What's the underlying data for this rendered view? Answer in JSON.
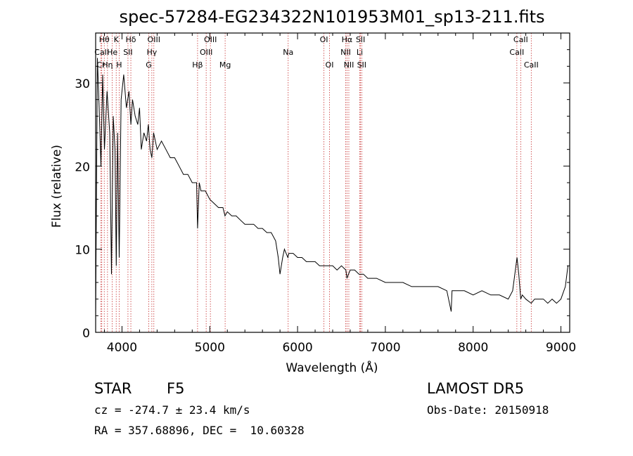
{
  "chart_data": {
    "type": "line",
    "title": "spec-57284-EG234322N101953M01_sp13-211.fits",
    "xlabel": "Wavelength (Å)",
    "ylabel": "Flux (relative)",
    "xlim": [
      3700,
      9100
    ],
    "ylim": [
      0,
      36
    ],
    "xticks": [
      4000,
      5000,
      6000,
      7000,
      8000,
      9000
    ],
    "yticks": [
      0,
      10,
      20,
      30
    ],
    "series": [
      {
        "x": [
          3700,
          3720,
          3740,
          3760,
          3780,
          3800,
          3830,
          3860,
          3880,
          3900,
          3920,
          3935,
          3950,
          3968,
          3990,
          4020,
          4050,
          4080,
          4101,
          4120,
          4150,
          4180,
          4200,
          4220,
          4250,
          4280,
          4300,
          4320,
          4340,
          4360,
          4380,
          4400,
          4450,
          4500,
          4550,
          4600,
          4650,
          4700,
          4750,
          4800,
          4850,
          4861,
          4880,
          4900,
          4950,
          5000,
          5050,
          5100,
          5150,
          5173,
          5200,
          5250,
          5300,
          5350,
          5400,
          5450,
          5500,
          5550,
          5600,
          5650,
          5700,
          5750,
          5780,
          5800,
          5830,
          5850,
          5870,
          5890,
          5900,
          5950,
          6000,
          6050,
          6100,
          6150,
          6200,
          6250,
          6300,
          6350,
          6400,
          6450,
          6500,
          6550,
          6563,
          6580,
          6600,
          6650,
          6700,
          6750,
          6800,
          6900,
          7000,
          7100,
          7200,
          7300,
          7400,
          7500,
          7600,
          7700,
          7750,
          7760,
          7800,
          7900,
          8000,
          8100,
          8200,
          8300,
          8400,
          8450,
          8500,
          8520,
          8542,
          8560,
          8600,
          8662,
          8700,
          8750,
          8800,
          8850,
          8900,
          8950,
          9000,
          9050,
          9080
        ],
        "y": [
          2,
          33,
          27,
          20,
          31,
          22,
          29,
          24,
          7,
          26,
          22,
          8,
          24,
          9,
          28,
          31,
          27,
          29,
          25,
          28,
          26,
          25,
          27,
          22,
          24,
          23,
          25,
          22,
          21,
          24,
          23,
          22,
          23,
          22,
          21,
          21,
          20,
          19,
          19,
          18,
          18,
          12.5,
          18,
          17,
          17,
          16,
          15.5,
          15,
          15,
          14,
          14.5,
          14,
          14,
          13.5,
          13,
          13,
          13,
          12.5,
          12.5,
          12,
          12,
          11,
          9,
          7,
          9,
          10,
          9.5,
          9,
          9.5,
          9.5,
          9,
          9,
          8.5,
          8.5,
          8.5,
          8,
          8,
          8,
          8,
          7.5,
          8,
          7.5,
          6.5,
          7,
          7.5,
          7.5,
          7,
          7,
          6.5,
          6.5,
          6,
          6,
          6,
          5.5,
          5.5,
          5.5,
          5.5,
          5,
          2.5,
          5,
          5,
          5,
          4.5,
          5,
          4.5,
          4.5,
          4,
          5,
          9,
          7,
          4,
          4.5,
          4,
          3.5,
          4,
          4,
          4,
          3.5,
          4,
          3.5,
          4,
          5.5,
          8
        ]
      }
    ],
    "lines": [
      {
        "name": "Hθ",
        "wl": 3798,
        "row": 0
      },
      {
        "name": "CaII",
        "wl": 3770,
        "row": 1
      },
      {
        "name": "Cr",
        "wl": 3760,
        "row": 2
      },
      {
        "name": "Hη",
        "wl": 3835,
        "row": 2
      },
      {
        "name": "He",
        "wl": 3889,
        "row": 1
      },
      {
        "name": "K",
        "wl": 3934,
        "row": 0
      },
      {
        "name": "H",
        "wl": 3968,
        "row": 2
      },
      {
        "name": "SII",
        "wl": 4068,
        "row": 1
      },
      {
        "name": "Hδ",
        "wl": 4101,
        "row": 0
      },
      {
        "name": "OIII",
        "wl": 4363,
        "row": 0
      },
      {
        "name": "Hγ",
        "wl": 4340,
        "row": 1
      },
      {
        "name": "G",
        "wl": 4305,
        "row": 2
      },
      {
        "name": "Hβ",
        "wl": 4861,
        "row": 2
      },
      {
        "name": "OIII",
        "wl": 4959,
        "row": 1
      },
      {
        "name": "OIII",
        "wl": 5007,
        "row": 0
      },
      {
        "name": "Mg",
        "wl": 5175,
        "row": 2
      },
      {
        "name": "Na",
        "wl": 5893,
        "row": 1
      },
      {
        "name": "OI",
        "wl": 6300,
        "row": 0
      },
      {
        "name": "OI",
        "wl": 6364,
        "row": 2
      },
      {
        "name": "Hα",
        "wl": 6563,
        "row": 0
      },
      {
        "name": "NII",
        "wl": 6548,
        "row": 1
      },
      {
        "name": "NII",
        "wl": 6584,
        "row": 2
      },
      {
        "name": "SII",
        "wl": 6717,
        "row": 0
      },
      {
        "name": "Li",
        "wl": 6708,
        "row": 1
      },
      {
        "name": "SII",
        "wl": 6731,
        "row": 2
      },
      {
        "name": "CaII",
        "wl": 8498,
        "row": 1
      },
      {
        "name": "CaII",
        "wl": 8542,
        "row": 0
      },
      {
        "name": "CaII",
        "wl": 8662,
        "row": 2
      }
    ],
    "line_color": "#c83232",
    "series_color": "#000000"
  },
  "info": {
    "class": "STAR",
    "subclass": "F5",
    "survey": "LAMOST DR5",
    "cz": "cz = -274.7 ± 23.4 km/s",
    "obsdate": "Obs-Date: 20150918",
    "radec": "RA = 357.68896, DEC =  10.60328"
  }
}
